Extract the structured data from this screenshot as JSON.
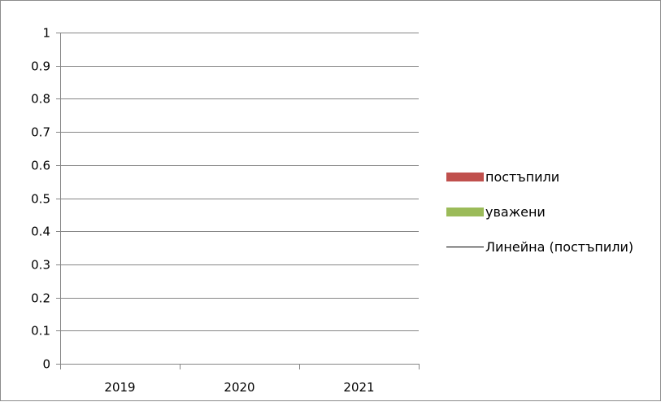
{
  "chart_data": {
    "type": "bar",
    "title": "",
    "xlabel": "",
    "ylabel": "",
    "categories": [
      "2019",
      "2020",
      "2021"
    ],
    "ylim": [
      0,
      1
    ],
    "yticks": [
      "0",
      "0.1",
      "0.2",
      "0.3",
      "0.4",
      "0.5",
      "0.6",
      "0.7",
      "0.8",
      "0.9",
      "1"
    ],
    "grid": true,
    "legend_position": "right",
    "series": [
      {
        "name": "постъпили",
        "values": [
          0,
          0,
          0
        ],
        "color": "#c0504d"
      },
      {
        "name": "уважени",
        "values": [
          0,
          0,
          0
        ],
        "color": "#9bbb59"
      }
    ],
    "legend": [
      {
        "label": "постъпили",
        "symbol": "box",
        "color": "#c0504d"
      },
      {
        "label": "уважени",
        "symbol": "box",
        "color": "#9bbb59"
      },
      {
        "label": "Линейна (постъпили)",
        "symbol": "line",
        "color": "#000000"
      }
    ]
  }
}
